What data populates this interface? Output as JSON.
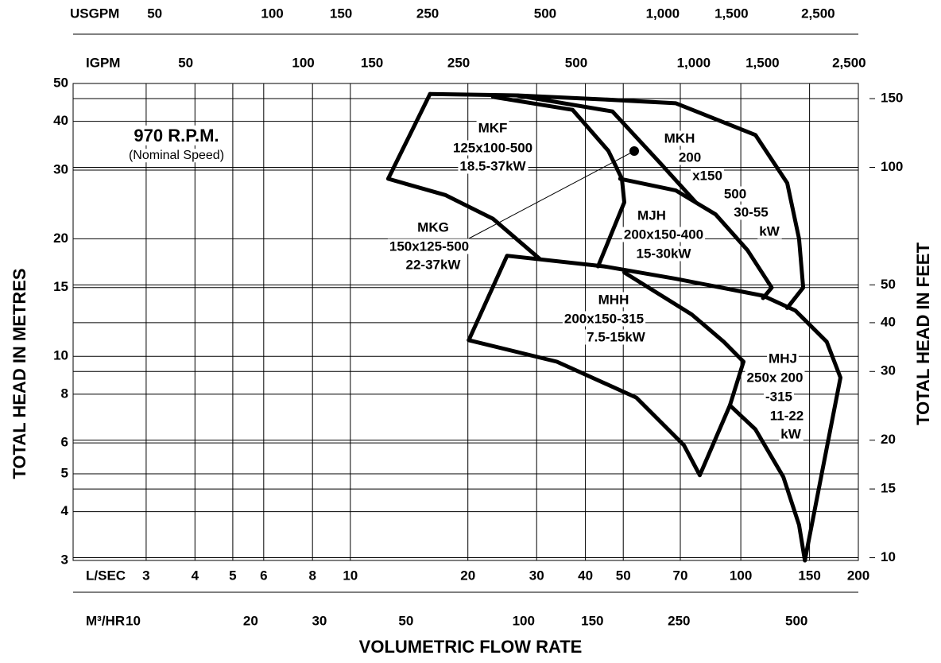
{
  "chart_data": {
    "type": "line",
    "xlabel": "VOLUMETRIC FLOW RATE",
    "ylabel": "TOTAL HEAD IN METRES",
    "y2label": "TOTAL HEAD IN FEET",
    "annotation": "970 R.P.M.",
    "annotation_sub": "(Nominal Speed)",
    "log_x": true,
    "log_y": true,
    "grid": true,
    "x_axis_name": "L/SEC",
    "xlim": [
      1.95,
      200
    ],
    "xticks": [
      3,
      4,
      5,
      6,
      8,
      10,
      20,
      30,
      40,
      50,
      70,
      100,
      150,
      200
    ],
    "ylim": [
      3,
      50
    ],
    "yticks": [
      3,
      4,
      5,
      6,
      8,
      10,
      15,
      20,
      30,
      40,
      50
    ],
    "y2lim": [
      9.84,
      164
    ],
    "y2ticks": [
      10,
      15,
      20,
      30,
      40,
      50,
      100,
      150
    ],
    "top_axes": [
      {
        "name": "USGPM",
        "lim": [
          30.9,
          3170
        ],
        "ticks": [
          50,
          100,
          150,
          250,
          500,
          {
            "value": 1000,
            "label": "1,000"
          },
          {
            "value": 1500,
            "label": "1,500"
          },
          {
            "value": 2500,
            "label": "2,500"
          }
        ]
      },
      {
        "name": "IGPM",
        "lim": [
          25.74,
          2640
        ],
        "ticks": [
          50,
          100,
          150,
          250,
          500,
          {
            "value": 1000,
            "label": "1,000"
          },
          {
            "value": 1500,
            "label": "1,500"
          },
          {
            "value": 2500,
            "label": "2,500"
          }
        ]
      }
    ],
    "bottom_axis2": {
      "name": "M³/HR",
      "lim": [
        7.02,
        720
      ],
      "ticks": [
        10,
        20,
        30,
        50,
        100,
        150,
        250,
        500
      ]
    },
    "boundaries": [
      {
        "x": [
          30.5,
          23.2,
          17.5,
          12.5,
          16.0
        ],
        "y": [
          17.8,
          22.5,
          25.9,
          28.5,
          47.0
        ]
      },
      {
        "x": [
          16.0,
          26.7,
          44.7,
          68.2,
          109,
          131.5,
          141,
          144.5,
          131.5
        ],
        "y": [
          47.0,
          46.6,
          45.5,
          44.5,
          36.9,
          27.8,
          20.0,
          15.0,
          13.3
        ]
      },
      {
        "x": [
          23.2,
          37.1,
          45.8,
          49.6,
          50.3,
          43.1
        ],
        "y": [
          46.2,
          42.8,
          33.6,
          28.5,
          24.8,
          17.0
        ]
      },
      {
        "x": [
          26.7,
          46.9,
          62.1,
          76.7
        ],
        "y": [
          46.6,
          42.4,
          31.3,
          24.8
        ]
      },
      {
        "x": [
          49.1,
          68.2,
          86.2,
          104,
          120,
          114
        ],
        "y": [
          28.5,
          26.6,
          23.1,
          18.7,
          15.0,
          14.1
        ]
      },
      {
        "x": [
          20.1,
          25.2,
          44.7,
          68.2,
          114,
          137.9,
          166,
          180,
          145.9
        ],
        "y": [
          11.0,
          18.1,
          17.0,
          15.8,
          14.3,
          13.1,
          10.9,
          8.82,
          3.0
        ]
      },
      {
        "x": [
          20.1,
          33.8,
          54.0,
          71.5,
          78.5,
          93.8,
          101.6
        ],
        "y": [
          11.0,
          9.69,
          7.84,
          5.92,
          4.96,
          7.49,
          9.69
        ]
      },
      {
        "x": [
          50.3,
          74.9,
          90.4,
          101.6
        ],
        "y": [
          16.4,
          12.8,
          10.9,
          9.69
        ]
      },
      {
        "x": [
          93.8,
          109,
          128.5,
          141,
          145.9
        ],
        "y": [
          7.49,
          6.5,
          4.91,
          3.7,
          3.0
        ]
      }
    ],
    "region_labels": [
      [
        "MKF",
        "125x100-500",
        "18.5-37kW"
      ],
      [
        "MKH",
        "200",
        "x150",
        "500",
        "30-55",
        "kW"
      ],
      [
        "MJH",
        "200x150-400",
        "15-30kW"
      ],
      [
        "MKG",
        "150x125-500",
        "22-37kW"
      ],
      [
        "MHH",
        "200x150-315",
        "7.5-15kW"
      ],
      [
        "MHJ",
        "250x 200",
        "-315",
        "11-22",
        "kW"
      ]
    ]
  }
}
